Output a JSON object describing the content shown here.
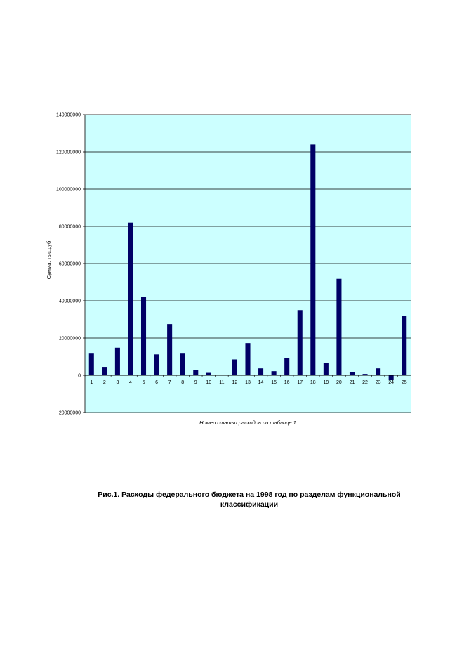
{
  "chart_data": {
    "type": "bar",
    "categories": [
      "1",
      "2",
      "3",
      "4",
      "5",
      "6",
      "7",
      "8",
      "9",
      "10",
      "11",
      "12",
      "13",
      "14",
      "15",
      "16",
      "17",
      "18",
      "19",
      "20",
      "21",
      "22",
      "23",
      "24",
      "25"
    ],
    "values": [
      12000000,
      4500000,
      14800000,
      82000000,
      42000000,
      11200000,
      27500000,
      12000000,
      3000000,
      1300000,
      300000,
      8500000,
      17300000,
      3700000,
      2200000,
      9300000,
      35000000,
      124000000,
      6700000,
      51800000,
      1800000,
      700000,
      3700000,
      -2500000,
      32000000
    ],
    "xlabel": "Номер статьи расходов по таблице 1",
    "ylabel": "Сумма, тыс.руб",
    "ylim": [
      -20000000,
      140000000
    ],
    "yticks": [
      -20000000,
      0,
      20000000,
      40000000,
      60000000,
      80000000,
      100000000,
      120000000,
      140000000
    ],
    "grid": true,
    "colors": {
      "plot_bg": "#ccffff",
      "bar": "#000066",
      "grid": "#000000"
    }
  },
  "caption": {
    "line1": "Рис.1. Расходы федерального бюджета на 1998 год по разделам функциональной",
    "line2": "классификации"
  }
}
